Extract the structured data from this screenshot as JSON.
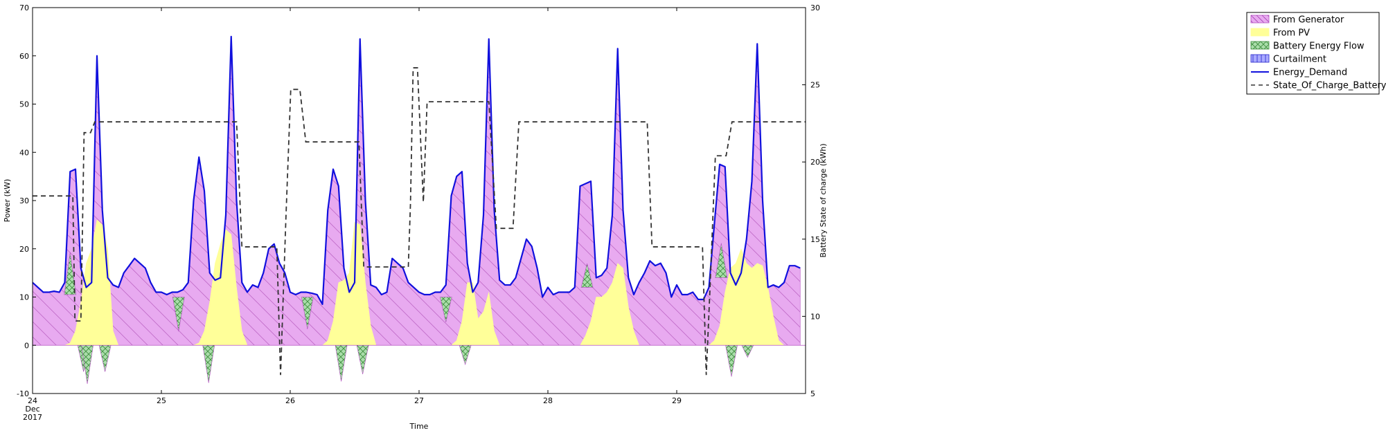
{
  "chart_data": {
    "type": "area",
    "xlabel": "Time",
    "ylabel": "Power (kW)",
    "y2label": "Battery State of charge (kWh)",
    "x_range": [
      "2017-12-24 00:00",
      "2017-12-29 24:00"
    ],
    "x_ticks": [
      {
        "day": 0,
        "label": "24",
        "sub1": "Dec",
        "sub2": "2017"
      },
      {
        "day": 1,
        "label": "25"
      },
      {
        "day": 2,
        "label": "26"
      },
      {
        "day": 3,
        "label": "27"
      },
      {
        "day": 4,
        "label": "28"
      },
      {
        "day": 5,
        "label": "29"
      }
    ],
    "ylim": [
      -10,
      70
    ],
    "y_ticks": [
      -10,
      0,
      10,
      20,
      30,
      40,
      50,
      60,
      70
    ],
    "y2lim": [
      5,
      30
    ],
    "y2_ticks": [
      5,
      10,
      15,
      20,
      25,
      30
    ],
    "grid": false,
    "legend_position": "top-right outside plot",
    "hours": [
      0,
      1,
      2,
      3,
      4,
      5,
      6,
      7,
      8,
      9,
      10,
      11,
      12,
      13,
      14,
      15,
      16,
      17,
      18,
      19,
      20,
      21,
      22,
      23
    ],
    "series": [
      {
        "name": "Energy_Demand",
        "style": "line",
        "color": "#1010dd",
        "axis": "left",
        "daily_values": [
          [
            13,
            12,
            11,
            11,
            11.2,
            11,
            13,
            36,
            36.5,
            16,
            12,
            13,
            60,
            28,
            14,
            12.5,
            12,
            15,
            16.5,
            18,
            17,
            16,
            13,
            11
          ],
          [
            11,
            10.5,
            11,
            11,
            11.5,
            13,
            30,
            39,
            32,
            15,
            13.5,
            14,
            27,
            64,
            30,
            13,
            11,
            12.5,
            12,
            15,
            20,
            21,
            17,
            15
          ],
          [
            11,
            10.5,
            11,
            11,
            10.8,
            10.5,
            8.5,
            28,
            36.5,
            33,
            16,
            11,
            13,
            63.5,
            30,
            12.5,
            12,
            10.5,
            11,
            18,
            17,
            16,
            13,
            12
          ],
          [
            11,
            10.5,
            10.5,
            11,
            11,
            12.5,
            31,
            35,
            36,
            17,
            11,
            13,
            27,
            63.5,
            28,
            13.5,
            12.5,
            12.5,
            14,
            18,
            22,
            20.5,
            16,
            10
          ],
          [
            12,
            10.5,
            11,
            11,
            11,
            12,
            33,
            33.5,
            34,
            14,
            14.5,
            16,
            27,
            61.5,
            28,
            14,
            10.5,
            13,
            15,
            17.5,
            16.5,
            17,
            15,
            10
          ],
          [
            12.5,
            10.5,
            10.5,
            11,
            9.5,
            9.5,
            12,
            25,
            37.5,
            37,
            15,
            12.5,
            15,
            22,
            34,
            62.5,
            30,
            12,
            12.5,
            12,
            13,
            16.5,
            16.5,
            16
          ]
        ]
      },
      {
        "name": "From Generator",
        "style": "area",
        "color": "#e8aaf0",
        "hatch": "\\"
      },
      {
        "name": "From PV",
        "style": "area",
        "color": "#ffff99",
        "daily_values": [
          [
            0,
            0,
            0,
            0,
            0,
            0,
            0,
            0.5,
            3,
            9,
            17,
            20,
            26,
            25,
            20,
            3,
            0,
            0,
            0,
            0,
            0,
            0,
            0,
            0
          ],
          [
            0,
            0,
            0,
            0,
            0,
            0,
            0,
            0.5,
            3,
            9,
            17,
            21,
            24,
            23,
            12,
            3,
            0,
            0,
            0,
            0,
            0,
            0,
            0,
            0
          ],
          [
            0,
            0,
            0,
            0,
            0,
            0,
            0,
            1,
            5,
            13,
            13.5,
            15,
            25.5,
            25,
            13,
            4,
            0,
            0,
            0,
            0,
            0,
            0,
            0,
            0
          ],
          [
            0,
            0,
            0,
            0,
            0,
            0,
            0,
            1,
            5,
            13,
            13,
            5.5,
            7,
            11,
            3,
            0,
            0,
            0,
            0,
            0,
            0,
            0,
            0,
            0
          ],
          [
            0,
            0,
            0,
            0,
            0,
            0,
            0,
            2,
            5,
            10,
            10,
            11,
            13,
            17,
            16,
            8,
            3,
            0,
            0,
            0,
            0,
            0,
            0,
            0
          ],
          [
            0,
            0,
            0,
            0,
            0,
            0,
            0,
            1,
            4,
            11,
            16,
            17,
            20,
            17,
            16,
            17,
            16.5,
            12,
            6,
            1,
            0,
            0,
            0,
            0
          ]
        ]
      },
      {
        "name": "Battery Energy Flow",
        "style": "area",
        "color": "#aaddaa",
        "hatch": "x",
        "daily_values": [
          [
            0,
            0,
            0,
            0,
            0,
            0,
            0,
            9,
            -1,
            -6,
            -8,
            -4,
            0,
            -3,
            -6,
            0,
            0,
            0,
            0,
            0,
            0,
            0,
            0,
            0
          ],
          [
            0,
            0,
            0,
            -8,
            0,
            0,
            0,
            0,
            0,
            0,
            0,
            0,
            0,
            0,
            0,
            0,
            0,
            0,
            0,
            0,
            0,
            0,
            0,
            0
          ],
          [
            0,
            0,
            0,
            -8,
            0,
            0,
            0,
            0,
            0,
            0,
            0,
            0,
            0,
            0,
            0,
            0,
            0,
            0,
            0,
            0,
            0,
            0,
            0,
            0
          ],
          [
            0,
            0,
            0,
            0,
            0,
            -5,
            0,
            0,
            0,
            0,
            0,
            0,
            0,
            0,
            0,
            0,
            0,
            0,
            0,
            0,
            0,
            0,
            0,
            0
          ],
          [
            0,
            0,
            0,
            0,
            0,
            0,
            0,
            4,
            0,
            0,
            0,
            0,
            0,
            0,
            0,
            0,
            0,
            0,
            0,
            0,
            0,
            0,
            0,
            0
          ],
          [
            0,
            0,
            0,
            0,
            0,
            0,
            0,
            0,
            0,
            0,
            0,
            0,
            0,
            0,
            0,
            0,
            0,
            0,
            0,
            0,
            0,
            0,
            0,
            0
          ]
        ],
        "events": [
          {
            "day": 0,
            "hour": 7.0,
            "value": 8
          },
          {
            "day": 0,
            "hour": 9.5,
            "value": -5.5
          },
          {
            "day": 0,
            "hour": 10.2,
            "value": -8
          },
          {
            "day": 0,
            "hour": 13.5,
            "value": -5.5
          },
          {
            "day": 1,
            "hour": 3.2,
            "value": 7.5
          },
          {
            "day": 1,
            "hour": 8.8,
            "value": -7.8
          },
          {
            "day": 2,
            "hour": 3.2,
            "value": 7.0
          },
          {
            "day": 2,
            "hour": 9.5,
            "value": -7.5
          },
          {
            "day": 2,
            "hour": 13.5,
            "value": -6.0
          },
          {
            "day": 3,
            "hour": 5.0,
            "value": 5.5
          },
          {
            "day": 3,
            "hour": 8.6,
            "value": -4.0
          },
          {
            "day": 4,
            "hour": 7.3,
            "value": 4.5
          },
          {
            "day": 5,
            "hour": 8.3,
            "value": 6.5
          },
          {
            "day": 5,
            "hour": 10.2,
            "value": -6.5
          },
          {
            "day": 5,
            "hour": 13.2,
            "value": -2.5
          }
        ]
      },
      {
        "name": "Curtailment",
        "style": "area",
        "color": "#aaaaff"
      },
      {
        "name": "State_Of_Charge_Battery",
        "style": "dashed-line",
        "color": "#333333",
        "axis": "right",
        "points": [
          [
            0.0,
            17.8
          ],
          [
            7.5,
            17.8
          ],
          [
            7.9,
            9.7
          ],
          [
            9.0,
            9.7
          ],
          [
            9.6,
            21.9
          ],
          [
            10.8,
            21.9
          ],
          [
            11.6,
            22.6
          ],
          [
            38.0,
            22.6
          ],
          [
            39.0,
            14.5
          ],
          [
            45.5,
            14.5
          ],
          [
            46.2,
            6.2
          ],
          [
            46.6,
            10.3
          ],
          [
            47.2,
            16.4
          ],
          [
            48.1,
            24.7
          ],
          [
            49.8,
            24.7
          ],
          [
            50.9,
            21.3
          ],
          [
            60.8,
            21.3
          ],
          [
            61.7,
            13.2
          ],
          [
            70.0,
            13.2
          ],
          [
            70.4,
            17.3
          ],
          [
            70.9,
            26.1
          ],
          [
            71.7,
            26.1
          ],
          [
            72.8,
            17.4
          ],
          [
            73.5,
            23.9
          ],
          [
            85.0,
            23.9
          ],
          [
            86.4,
            15.7
          ],
          [
            89.5,
            15.7
          ],
          [
            90.6,
            22.6
          ],
          [
            114.5,
            22.6
          ],
          [
            115.4,
            14.5
          ],
          [
            124.8,
            14.5
          ],
          [
            125.5,
            6.2
          ],
          [
            126.1,
            11.0
          ],
          [
            127.2,
            20.4
          ],
          [
            129.2,
            20.4
          ],
          [
            130.3,
            22.6
          ],
          [
            144.0,
            22.6
          ]
        ]
      }
    ],
    "legend": [
      {
        "label": "From Generator",
        "swatch": "patch",
        "color": "#e8aaf0",
        "edge": "#b24fc0",
        "hatch": "\\"
      },
      {
        "label": "From PV",
        "swatch": "patch",
        "color": "#ffff99",
        "edge": "#ffff99",
        "hatch": ""
      },
      {
        "label": "Battery Energy Flow",
        "swatch": "patch",
        "color": "#aaddaa",
        "edge": "#3a8a3a",
        "hatch": "x"
      },
      {
        "label": "Curtailment",
        "swatch": "patch",
        "color": "#aaaaff",
        "edge": "#2222cc",
        "hatch": "|"
      },
      {
        "label": "Energy_Demand",
        "swatch": "line",
        "color": "#1010dd"
      },
      {
        "label": "State_Of_Charge_Battery",
        "swatch": "dashed",
        "color": "#333333"
      }
    ]
  }
}
